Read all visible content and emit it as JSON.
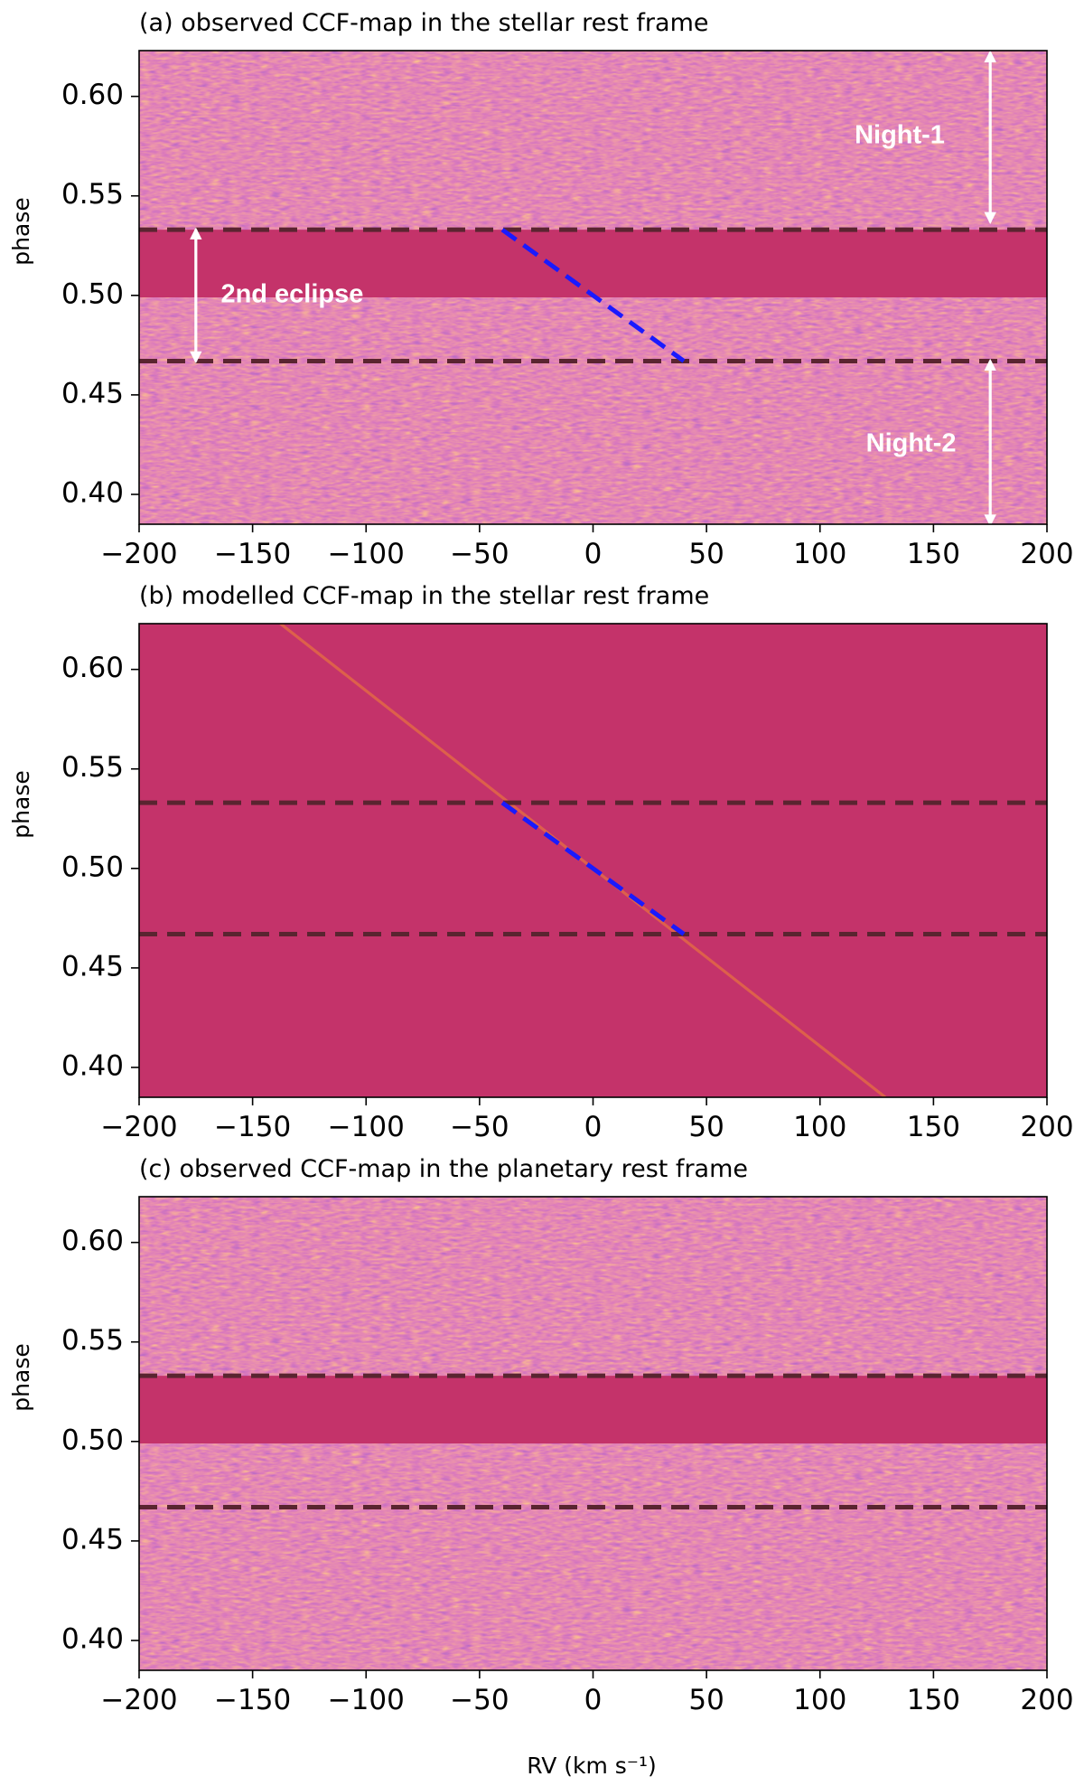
{
  "chart_data": [
    {
      "type": "heatmap",
      "title": "(a) observed CCF-map in the stellar rest frame",
      "xlabel": "",
      "ylabel": "phase",
      "xlim": [
        -200,
        200
      ],
      "ylim": [
        0.385,
        0.623
      ],
      "xticks": [
        -200,
        -150,
        -100,
        -50,
        0,
        50,
        100,
        150,
        200
      ],
      "xtick_labels": [
        "−200",
        "−150",
        "−100",
        "−50",
        "0",
        "50",
        "100",
        "150",
        "200"
      ],
      "yticks": [
        0.4,
        0.45,
        0.5,
        0.55,
        0.6
      ],
      "ytick_labels": [
        "0.40",
        "0.45",
        "0.50",
        "0.55",
        "0.60"
      ],
      "colormap": "plasma",
      "texture": "noise",
      "masked_phase_ranges": [
        [
          0.499,
          0.533
        ]
      ],
      "eclipse_phase_lines": [
        0.467,
        0.533
      ],
      "planet_trail": {
        "show": false,
        "x_at_phase_0_5": 0,
        "rv_per_phase": -1220
      },
      "blue_segment": {
        "x": [
          -40,
          40
        ],
        "y": [
          0.533,
          0.467
        ]
      },
      "annotations": [
        {
          "text": "Night-1",
          "x": 175,
          "y_from": 0.622,
          "y_to": 0.537,
          "label_x": 155,
          "label_y": 0.58
        },
        {
          "text": "2nd eclipse",
          "x": -175,
          "y_from": 0.533,
          "y_to": 0.467,
          "label_x": -164,
          "label_y": 0.5
        },
        {
          "text": "Night-2",
          "x": 175,
          "y_from": 0.467,
          "y_to": 0.385,
          "label_x": 160,
          "label_y": 0.425
        }
      ]
    },
    {
      "type": "heatmap",
      "title": "(b) modelled CCF-map in the stellar rest frame",
      "xlabel": "",
      "ylabel": "phase",
      "xlim": [
        -200,
        200
      ],
      "ylim": [
        0.385,
        0.623
      ],
      "xticks": [
        -200,
        -150,
        -100,
        -50,
        0,
        50,
        100,
        150,
        200
      ],
      "xtick_labels": [
        "−200",
        "−150",
        "−100",
        "−50",
        "0",
        "50",
        "100",
        "150",
        "200"
      ],
      "yticks": [
        0.4,
        0.45,
        0.5,
        0.55,
        0.6
      ],
      "ytick_labels": [
        "0.40",
        "0.45",
        "0.50",
        "0.55",
        "0.60"
      ],
      "colormap": "plasma",
      "texture": "flat",
      "masked_phase_ranges": [],
      "eclipse_phase_lines": [
        0.467,
        0.533
      ],
      "planet_trail": {
        "show": true,
        "x_at_phase_0_5": 0,
        "rv_per_phase": -1120
      },
      "blue_segment": {
        "x": [
          -40,
          40
        ],
        "y": [
          0.533,
          0.467
        ]
      },
      "annotations": []
    },
    {
      "type": "heatmap",
      "title": "(c) observed CCF-map in the planetary rest frame",
      "xlabel": "RV (km s⁻¹)",
      "ylabel": "phase",
      "xlim": [
        -200,
        200
      ],
      "ylim": [
        0.385,
        0.623
      ],
      "xticks": [
        -200,
        -150,
        -100,
        -50,
        0,
        50,
        100,
        150,
        200
      ],
      "xtick_labels": [
        "−200",
        "−150",
        "−100",
        "−50",
        "0",
        "50",
        "100",
        "150",
        "200"
      ],
      "yticks": [
        0.4,
        0.45,
        0.5,
        0.55,
        0.6
      ],
      "ytick_labels": [
        "0.40",
        "0.45",
        "0.50",
        "0.55",
        "0.60"
      ],
      "colormap": "plasma",
      "texture": "noise",
      "masked_phase_ranges": [
        [
          0.499,
          0.533
        ]
      ],
      "eclipse_phase_lines": [
        0.467,
        0.533
      ],
      "planet_trail": {
        "show": false,
        "x_at_phase_0_5": 0,
        "rv_per_phase": 0
      },
      "blue_segment": null,
      "annotations": []
    }
  ],
  "colors": {
    "background_field": "#c4336a",
    "eclipse_line": "#5a2430",
    "blue_segment": "#1a1aff",
    "trail": "#e8743f",
    "annotation": "#ffffff",
    "noise_palette": [
      "#5a1a8f",
      "#8a2290",
      "#b83486",
      "#d6486f",
      "#ed6d52",
      "#f9a03c",
      "#f5c74a"
    ]
  }
}
